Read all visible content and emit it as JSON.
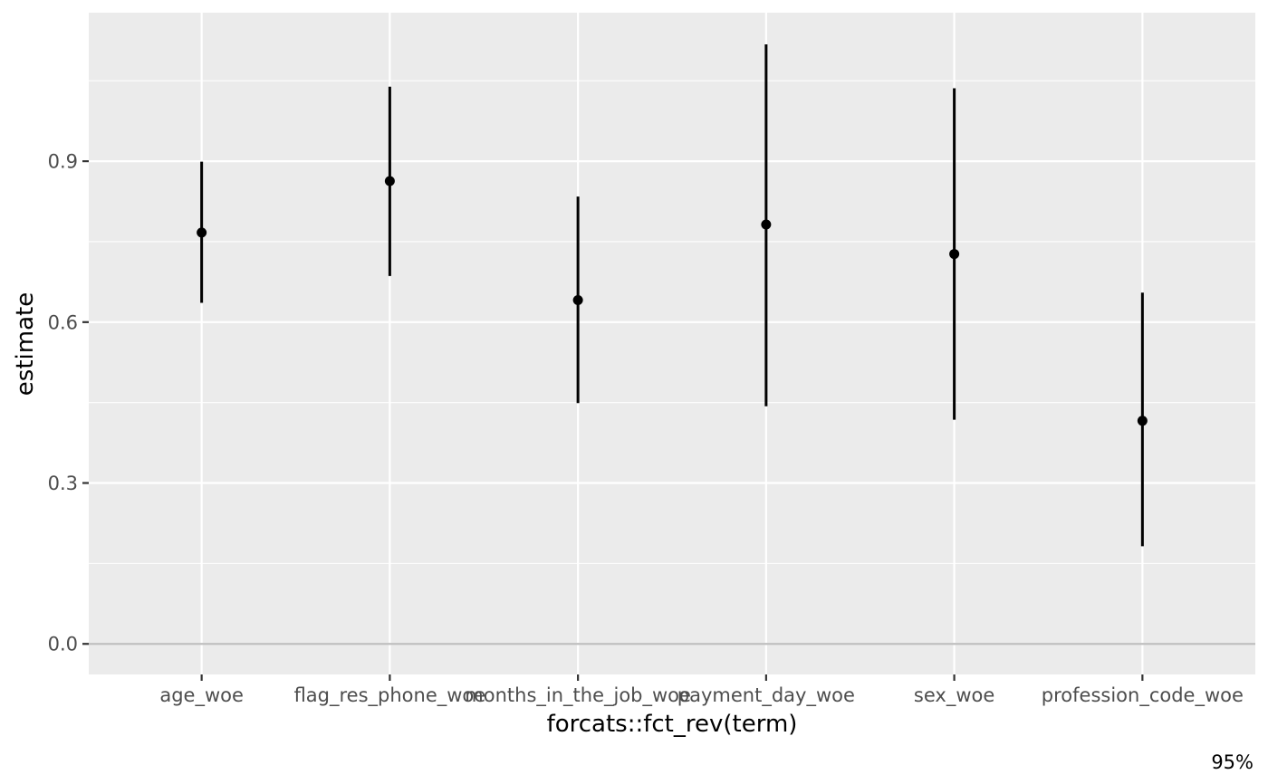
{
  "chart_data": {
    "type": "errorbar",
    "categories": [
      "age_woe",
      "flag_res_phone_woe",
      "months_in_the_job_woe",
      "payment_day_woe",
      "sex_woe",
      "profession_code_woe"
    ],
    "series": [
      {
        "estimate": [
          0.767,
          0.863,
          0.641,
          0.782,
          0.727,
          0.416
        ],
        "lower": [
          0.636,
          0.686,
          0.449,
          0.443,
          0.418,
          0.182
        ],
        "upper": [
          0.899,
          1.039,
          0.834,
          1.118,
          1.036,
          0.655
        ]
      }
    ],
    "xlabel": "forcats::fct_rev(term)",
    "ylabel": "estimate",
    "yticks": [
      0.0,
      0.3,
      0.6,
      0.9
    ],
    "ytick_labels": [
      "0.0",
      "0.3",
      "0.6",
      "0.9"
    ],
    "ylim": [
      -0.057,
      1.177
    ],
    "reference_line": 0.0,
    "grid": true,
    "caption": "95%",
    "colors": {
      "panel": "#ebebeb",
      "grid": "#ffffff",
      "marks": "#000000",
      "reference": "#bebebe"
    }
  }
}
